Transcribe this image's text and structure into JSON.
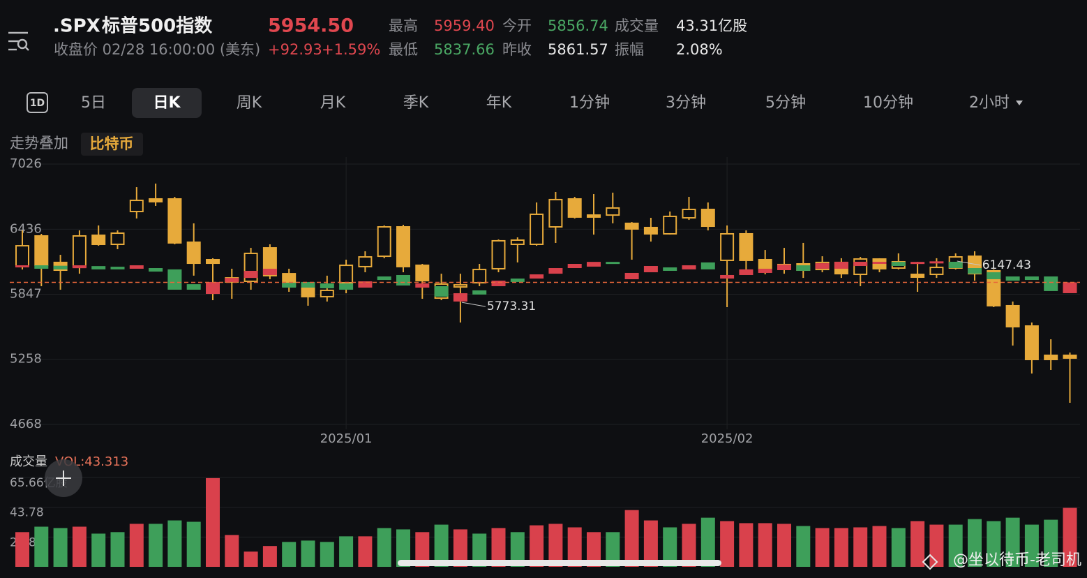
{
  "header": {
    "symbol": ".SPX",
    "name": "标普500指数",
    "price": "5954.50",
    "status": "收盘价 02/28 16:00:00 (美东)",
    "change": "+92.93",
    "change_pct": "+1.59%",
    "stats": [
      {
        "label": "最高",
        "value": "5959.40",
        "color": "#e0474f"
      },
      {
        "label": "今开",
        "value": "5856.74",
        "color": "#4aa864"
      },
      {
        "label": "成交量",
        "value": "43.31亿股",
        "color": "#e8e8e8"
      },
      {
        "label": "最低",
        "value": "5837.66",
        "color": "#4aa864"
      },
      {
        "label": "昨收",
        "value": "5861.57",
        "color": "#e8e8e8"
      },
      {
        "label": "振幅",
        "value": "2.08%",
        "color": "#e8e8e8"
      }
    ]
  },
  "tab_icon": "1D",
  "tabs": [
    {
      "label": "5日",
      "selected": false
    },
    {
      "label": "日K",
      "selected": true
    },
    {
      "label": "周K",
      "selected": false
    },
    {
      "label": "月K",
      "selected": false
    },
    {
      "label": "季K",
      "selected": false
    },
    {
      "label": "年K",
      "selected": false
    },
    {
      "label": "1分钟",
      "selected": false
    },
    {
      "label": "3分钟",
      "selected": false
    },
    {
      "label": "5分钟",
      "selected": false
    },
    {
      "label": "10分钟",
      "selected": false
    },
    {
      "label": "2小时",
      "selected": false
    }
  ],
  "overlay_label": "走势叠加",
  "watermark": "@坐以待币-老司机",
  "chart_data": [
    {
      "type": "candlestick",
      "categories": [
        null,
        null,
        null,
        null,
        null,
        null,
        null,
        null,
        null,
        null,
        null,
        null,
        null,
        null,
        null,
        null,
        null,
        "2025/01",
        null,
        null,
        null,
        null,
        null,
        null,
        null,
        null,
        null,
        null,
        null,
        null,
        null,
        null,
        null,
        null,
        null,
        null,
        null,
        "2025/02",
        null,
        null,
        null,
        null,
        null,
        null,
        null,
        null,
        null,
        null,
        null,
        null,
        null,
        null,
        null,
        null,
        null,
        null
      ],
      "ylim": [
        4668,
        7026
      ],
      "yticks": [
        7026,
        6436,
        5847,
        5258,
        4668
      ],
      "grid": true,
      "series": [
        {
          "up_color": "#d9414c",
          "down_color": "#3e9f5a",
          "open": [
            6090,
            6109,
            6105,
            6083,
            6102,
            6096,
            6078,
            6084,
            6072,
            5938,
            5850,
            5958,
            5995,
            6021,
            5951,
            5958,
            5945,
            5945,
            5907,
            6008,
            6021,
            5907,
            5920,
            5781,
            5882,
            5920,
            5989,
            5989,
            6033,
            6084,
            6097,
            6140,
            5983,
            6046,
            6090,
            6072,
            6135,
            5989,
            6021,
            6040,
            6065,
            6109,
            6078,
            6078,
            6103,
            6122,
            6140,
            6128,
            6135,
            6141,
            6084,
            6046,
            6008,
            6008,
            6008,
            5856.74
          ],
          "close": [
            6109,
            6078,
            6072,
            6109,
            6072,
            6072,
            6109,
            6052,
            5888,
            5888,
            5958,
            5995,
            6059,
            6078,
            5907,
            5907,
            5901,
            5888,
            5964,
            5976,
            5926,
            5945,
            5825,
            5856,
            5844,
            5970,
            5958,
            6027,
            6084,
            6122,
            6140,
            6122,
            6040,
            6103,
            6059,
            6109,
            6072,
            6021,
            6072,
            6078,
            6116,
            6059,
            6128,
            6141,
            6141,
            6141,
            6103,
            6140,
            6145,
            6084,
            6033,
            5983,
            5970,
            5976,
            5876,
            5954.5
          ]
        },
        {
          "name": "比特币",
          "color": "#e7aa3b",
          "open": [
            6097,
            6375,
            6135,
            6097,
            6381,
            6299,
            6596,
            6710,
            6710,
            6318,
            6160,
            5995,
            5964,
            6267,
            6033,
            5907,
            5825,
            5951,
            6097,
            6191,
            6457,
            6109,
            5812,
            5913,
            5951,
            6078,
            6299,
            6299,
            6457,
            6710,
            6564,
            6564,
            6489,
            6451,
            6394,
            6539,
            6615,
            6154,
            6394,
            6160,
            6116,
            6122,
            6071,
            6135,
            6027,
            6166,
            6084,
            6027,
            6027,
            6084,
            6191,
            6059,
            5743,
            5559,
            5294,
            5294
          ],
          "high": [
            6425,
            6394,
            6204,
            6425,
            6470,
            6425,
            6817,
            6849,
            6729,
            6489,
            6173,
            6078,
            6267,
            6299,
            6078,
            5951,
            6015,
            6160,
            6236,
            6470,
            6476,
            6122,
            6033,
            6033,
            6122,
            6343,
            6362,
            6678,
            6773,
            6729,
            6754,
            6767,
            6501,
            6539,
            6596,
            6729,
            6678,
            6470,
            6425,
            6248,
            6267,
            6312,
            6191,
            6173,
            6185,
            6173,
            6217,
            6141,
            6173,
            6217,
            6236,
            6071,
            5781,
            5591,
            5439,
            5319
          ],
          "low": [
            6071,
            5920,
            5888,
            6033,
            6286,
            6255,
            6533,
            6647,
            6299,
            6015,
            5793,
            5806,
            5888,
            5983,
            5869,
            5743,
            5781,
            5856,
            6046,
            6173,
            6046,
            5806,
            5793,
            5591,
            5920,
            6046,
            6135,
            6286,
            6312,
            6533,
            6387,
            6489,
            6160,
            6324,
            6387,
            6520,
            6425,
            5730,
            6059,
            6027,
            6033,
            5995,
            6046,
            5995,
            5920,
            6046,
            6071,
            5869,
            5995,
            6071,
            5970,
            5730,
            5382,
            5129,
            5161,
            4864
          ],
          "close": [
            6286,
            6109,
            6065,
            6375,
            6299,
            6400,
            6697,
            6685,
            6312,
            6128,
            6128,
            5958,
            6217,
            6015,
            5920,
            5825,
            5882,
            6109,
            6185,
            6457,
            6097,
            5970,
            5939,
            5932,
            6071,
            6331,
            6337,
            6571,
            6704,
            6546,
            6546,
            6628,
            6438,
            6394,
            6552,
            6615,
            6463,
            6394,
            6154,
            6078,
            6078,
            6065,
            6135,
            6033,
            6166,
            6078,
            6141,
            6002,
            6090,
            6185,
            6033,
            5743,
            5553,
            5256,
            5256,
            5269
          ]
        }
      ],
      "annotations": [
        {
          "index": 23,
          "value": 5773.31
        },
        {
          "index": 49,
          "value": 6147.43
        }
      ],
      "price_line_color": "#e8673a"
    },
    {
      "type": "bar",
      "title": "成交量",
      "subtitle": "VOL:43.313",
      "values": [
        25.5,
        29.5,
        28.5,
        29.5,
        24.4,
        25.5,
        31.6,
        31.6,
        34.1,
        33.1,
        65.2,
        23.4,
        11.2,
        15.3,
        18.3,
        19.3,
        18.3,
        22.4,
        22.4,
        28.5,
        27.5,
        25.5,
        31.0,
        27.5,
        24.4,
        28.5,
        25.5,
        30.5,
        31.6,
        29.0,
        25.5,
        25.5,
        41.7,
        34.1,
        29.0,
        31.6,
        36.1,
        33.6,
        32.1,
        32.1,
        31.6,
        30.0,
        28.5,
        28.5,
        29.0,
        30.0,
        28.5,
        33.6,
        31.0,
        31.0,
        35.1,
        33.6,
        36.1,
        31.0,
        34.6,
        43.313
      ],
      "ylim": [
        0,
        65.66
      ],
      "yticks": [
        {
          "value": 65.66,
          "label": "65.66亿股"
        },
        43.78,
        21.89
      ],
      "grid": true
    }
  ]
}
